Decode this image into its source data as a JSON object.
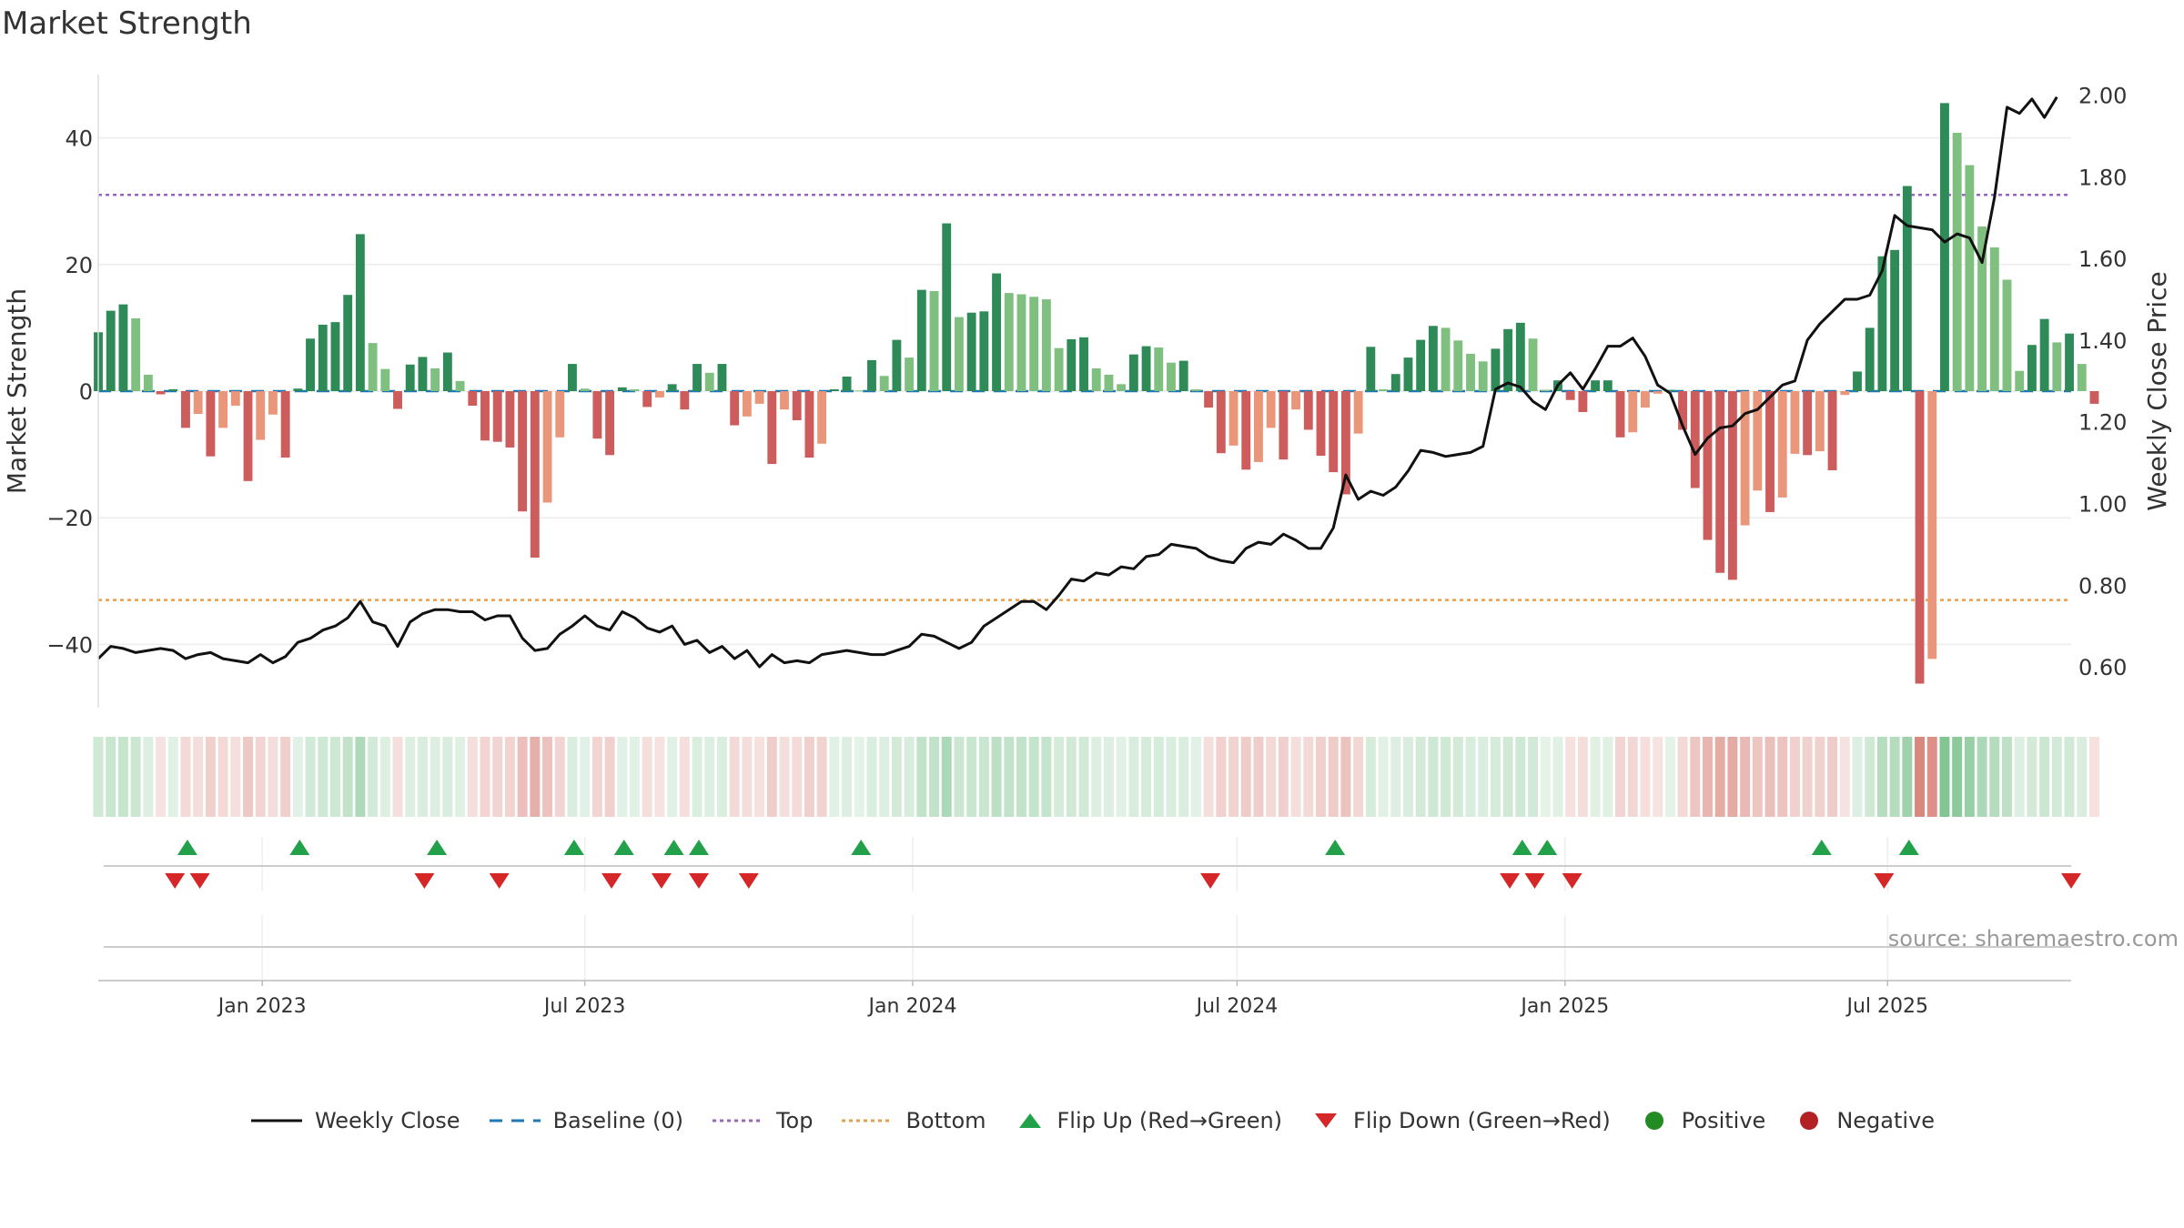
{
  "page": {
    "title": "Market Strength",
    "source": "source: sharemaestro.com"
  },
  "colors": {
    "pos_strong": "#2e8b57",
    "pos_weak": "#7fbf7f",
    "neg_strong": "#cd5c5c",
    "neg_weak": "#e9967a",
    "baseline": "#1f77b4",
    "top": "#9467bd",
    "bottom": "#e6a04a",
    "close": "#111111",
    "flip_up": "#23a04a",
    "flip_down": "#d62728",
    "positive": "#228b22",
    "negative": "#b22222"
  },
  "legend": [
    {
      "key": "close",
      "label": "Weekly Close"
    },
    {
      "key": "baseline",
      "label": "Baseline (0)"
    },
    {
      "key": "top",
      "label": "Top"
    },
    {
      "key": "bottom",
      "label": "Bottom"
    },
    {
      "key": "flip_up",
      "label": "Flip Up (Red→Green)"
    },
    {
      "key": "flip_down",
      "label": "Flip Down (Green→Red)"
    },
    {
      "key": "positive",
      "label": "Positive"
    },
    {
      "key": "negative",
      "label": "Negative"
    }
  ],
  "chart_data": {
    "type": "bar",
    "x_start": "2022-10-01",
    "x_step_days": 7,
    "x_range": [
      "2022-10-01",
      "2025-10-12"
    ],
    "xticks": [
      {
        "date": "2023-01-01",
        "label": "Jan 2023"
      },
      {
        "date": "2023-07-01",
        "label": "Jul 2023"
      },
      {
        "date": "2024-01-01",
        "label": "Jan 2024"
      },
      {
        "date": "2024-07-01",
        "label": "Jul 2024"
      },
      {
        "date": "2025-01-01",
        "label": "Jan 2025"
      },
      {
        "date": "2025-07-01",
        "label": "Jul 2025"
      }
    ],
    "ylabel": "Market Strength",
    "ylim": [
      -50,
      50
    ],
    "yticks": [
      40,
      20,
      0,
      -20,
      -40
    ],
    "ytick_labels": [
      "40",
      "20",
      "0",
      "−20",
      "−40"
    ],
    "y2label": "Weekly Close Price",
    "y2lim": [
      0.5,
      2.05
    ],
    "y2ticks": [
      2.0,
      1.8,
      1.6,
      1.4,
      1.2,
      1.0,
      0.8,
      0.6
    ],
    "y2tick_labels": [
      "2.00",
      "1.80",
      "1.60",
      "1.40",
      "1.20",
      "1.00",
      "0.80",
      "0.60"
    ],
    "top_line": 31,
    "bottom_line": -33,
    "strength": [
      9.3,
      12.7,
      13.7,
      11.5,
      2.6,
      -0.5,
      0.3,
      -5.8,
      -3.6,
      -10.3,
      -5.8,
      -2.3,
      -14.2,
      -7.7,
      -3.7,
      -10.5,
      0.4,
      8.3,
      10.5,
      10.9,
      15.2,
      24.8,
      7.6,
      3.5,
      -2.8,
      4.2,
      5.4,
      3.6,
      6.1,
      1.6,
      -2.3,
      -7.8,
      -8.0,
      -8.9,
      -19.0,
      -26.3,
      -17.6,
      -7.3,
      4.3,
      0.4,
      -7.5,
      -10.1,
      0.6,
      0.3,
      -2.5,
      -1.0,
      1.1,
      -2.9,
      4.3,
      2.9,
      4.3,
      -5.4,
      -4.0,
      -2.0,
      -11.5,
      -2.9,
      -4.6,
      -10.5,
      -8.3,
      0.3,
      2.3,
      0.1,
      4.9,
      2.4,
      8.1,
      5.3,
      16.0,
      15.8,
      26.5,
      11.7,
      12.4,
      12.6,
      18.6,
      15.5,
      15.3,
      14.9,
      14.5,
      6.8,
      8.2,
      8.5,
      3.6,
      2.6,
      1.1,
      5.8,
      7.1,
      6.9,
      4.5,
      4.8,
      0.3,
      -2.6,
      -9.8,
      -8.6,
      -12.4,
      -11.2,
      -5.8,
      -10.8,
      -2.9,
      -6.1,
      -10.2,
      -12.8,
      -16.3,
      -6.7,
      7.0,
      0.3,
      2.7,
      5.3,
      8.1,
      10.3,
      10.0,
      8.0,
      5.9,
      4.7,
      6.7,
      9.8,
      10.8,
      8.3,
      0.2,
      1.7,
      -1.4,
      -3.3,
      1.7,
      1.7,
      -7.3,
      -6.5,
      -2.6,
      -0.4,
      0.2,
      -6.1,
      -15.3,
      -23.5,
      -28.7,
      -29.8,
      -21.2,
      -15.7,
      -19.1,
      -16.8,
      -9.9,
      -10.1,
      -9.5,
      -12.5,
      -0.6,
      3.1,
      10.0,
      21.3,
      22.3,
      32.4,
      -46.2,
      -42.3,
      45.5,
      40.8,
      35.7,
      26.0,
      22.7,
      17.6,
      3.2,
      7.3,
      11.4,
      7.7,
      9.1,
      4.3,
      -2.0
    ],
    "close": [
      0.62,
      0.65,
      0.645,
      0.635,
      0.64,
      0.645,
      0.64,
      0.62,
      0.63,
      0.635,
      0.62,
      0.615,
      0.61,
      0.63,
      0.61,
      0.625,
      0.66,
      0.67,
      0.69,
      0.7,
      0.72,
      0.76,
      0.71,
      0.7,
      0.65,
      0.71,
      0.73,
      0.74,
      0.74,
      0.735,
      0.735,
      0.715,
      0.725,
      0.725,
      0.67,
      0.64,
      0.645,
      0.68,
      0.7,
      0.725,
      0.7,
      0.69,
      0.735,
      0.72,
      0.695,
      0.685,
      0.7,
      0.655,
      0.665,
      0.635,
      0.65,
      0.62,
      0.64,
      0.6,
      0.63,
      0.61,
      0.615,
      0.61,
      0.63,
      0.635,
      0.64,
      0.635,
      0.63,
      0.63,
      0.64,
      0.65,
      0.68,
      0.675,
      0.66,
      0.645,
      0.66,
      0.7,
      0.72,
      0.74,
      0.76,
      0.76,
      0.74,
      0.775,
      0.815,
      0.81,
      0.83,
      0.825,
      0.845,
      0.84,
      0.87,
      0.875,
      0.9,
      0.895,
      0.89,
      0.87,
      0.86,
      0.855,
      0.89,
      0.905,
      0.9,
      0.925,
      0.91,
      0.89,
      0.89,
      0.94,
      1.07,
      1.01,
      1.03,
      1.02,
      1.04,
      1.08,
      1.13,
      1.125,
      1.115,
      1.12,
      1.125,
      1.14,
      1.28,
      1.295,
      1.285,
      1.25,
      1.23,
      1.29,
      1.32,
      1.28,
      1.33,
      1.385,
      1.385,
      1.405,
      1.36,
      1.29,
      1.27,
      1.19,
      1.12,
      1.16,
      1.185,
      1.19,
      1.22,
      1.23,
      1.26,
      1.29,
      1.3,
      1.4,
      1.44,
      1.47,
      1.5,
      1.5,
      1.51,
      1.57,
      1.705,
      1.68,
      1.675,
      1.67,
      1.64,
      1.66,
      1.65,
      1.59,
      1.75,
      1.97,
      1.955,
      1.99,
      1.945,
      1.995
    ],
    "flip_up_dates": [
      "2022-11-20",
      "2023-01-22",
      "2023-04-09",
      "2023-06-25",
      "2023-07-23",
      "2023-08-20",
      "2023-09-03",
      "2023-12-03",
      "2024-08-25",
      "2024-12-08",
      "2024-12-22",
      "2025-05-25",
      "2025-07-13"
    ],
    "flip_down_dates": [
      "2022-11-13",
      "2022-11-27",
      "2023-04-02",
      "2023-05-14",
      "2023-07-16",
      "2023-08-13",
      "2023-09-03",
      "2023-10-01",
      "2024-06-16",
      "2024-12-01",
      "2024-12-15",
      "2025-01-05",
      "2025-06-29",
      "2025-10-12"
    ],
    "series": [
      {
        "name": "Weekly Close",
        "type": "line",
        "axis": "right"
      },
      {
        "name": "Baseline (0)",
        "type": "line",
        "value": 0
      },
      {
        "name": "Top",
        "type": "line",
        "value": 31
      },
      {
        "name": "Bottom",
        "type": "line",
        "value": -33
      }
    ]
  }
}
